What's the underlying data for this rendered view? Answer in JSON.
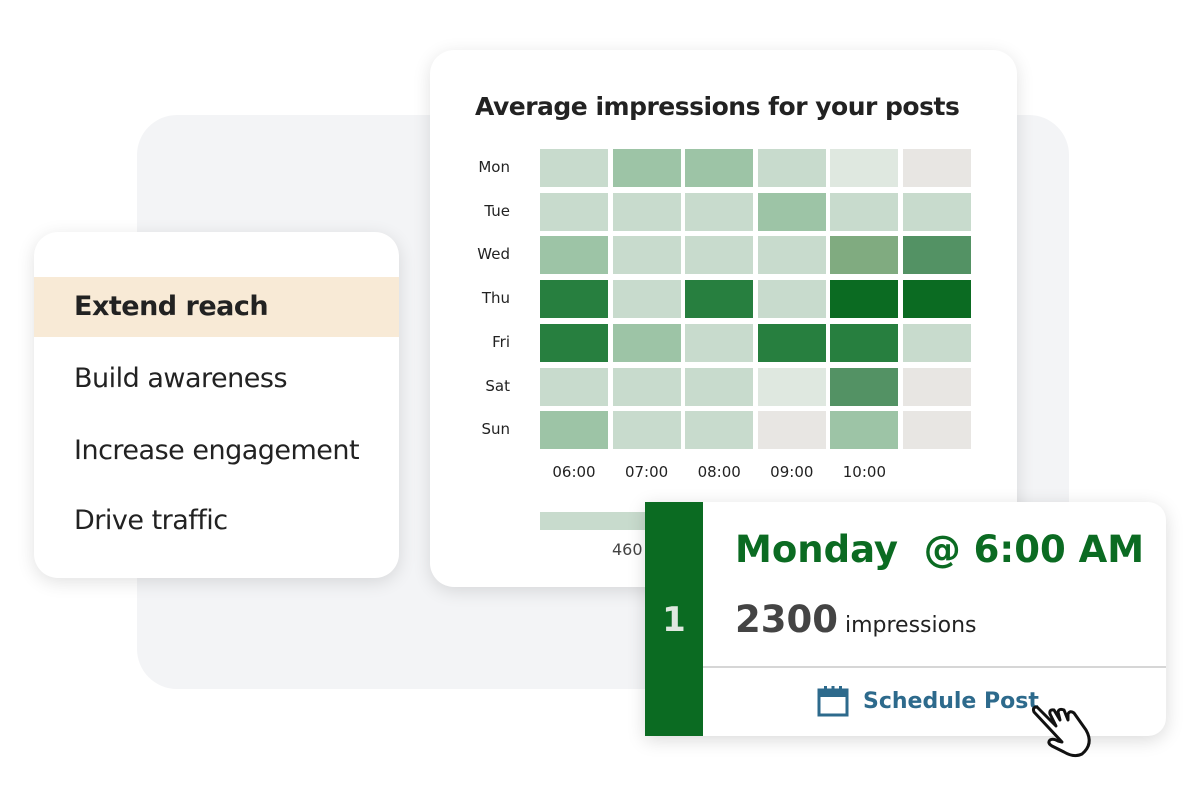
{
  "goals": {
    "items": [
      {
        "label": "Extend reach",
        "active": true
      },
      {
        "label": "Build awareness",
        "active": false
      },
      {
        "label": "Increase engagement",
        "active": false
      },
      {
        "label": "Drive traffic",
        "active": false
      }
    ]
  },
  "chart_data": {
    "type": "heatmap",
    "title": "Average impressions for your posts",
    "rows": [
      "Mon",
      "Tue",
      "Wed",
      "Thu",
      "Fri",
      "Sat",
      "Sun"
    ],
    "columns": [
      "06:00",
      "07:00",
      "08:00",
      "09:00",
      "10:00",
      ""
    ],
    "intensity_levels": [
      [
        2,
        3,
        3,
        2,
        1,
        0
      ],
      [
        2,
        2,
        2,
        3,
        2,
        2
      ],
      [
        3,
        2,
        2,
        2,
        4,
        5
      ],
      [
        6,
        2,
        6,
        2,
        7,
        7
      ],
      [
        6,
        3,
        2,
        6,
        6,
        2
      ],
      [
        2,
        2,
        2,
        1,
        5,
        0
      ],
      [
        3,
        2,
        2,
        0,
        3,
        0
      ]
    ],
    "color_scale": [
      "#e8e6e3",
      "#dfe8e0",
      "#c8dbcd",
      "#9dc4a6",
      "#80ab80",
      "#539264",
      "#277f3f",
      "#0b6b22"
    ],
    "legend_label": "460"
  },
  "recommendation": {
    "rank": "1",
    "time": "Monday  @ 6:00 AM",
    "impressions_value": "2300",
    "impressions_label": "impressions",
    "schedule_label": "Schedule Post",
    "accent": "#0b6b22",
    "link_color": "#2d6a8c"
  }
}
